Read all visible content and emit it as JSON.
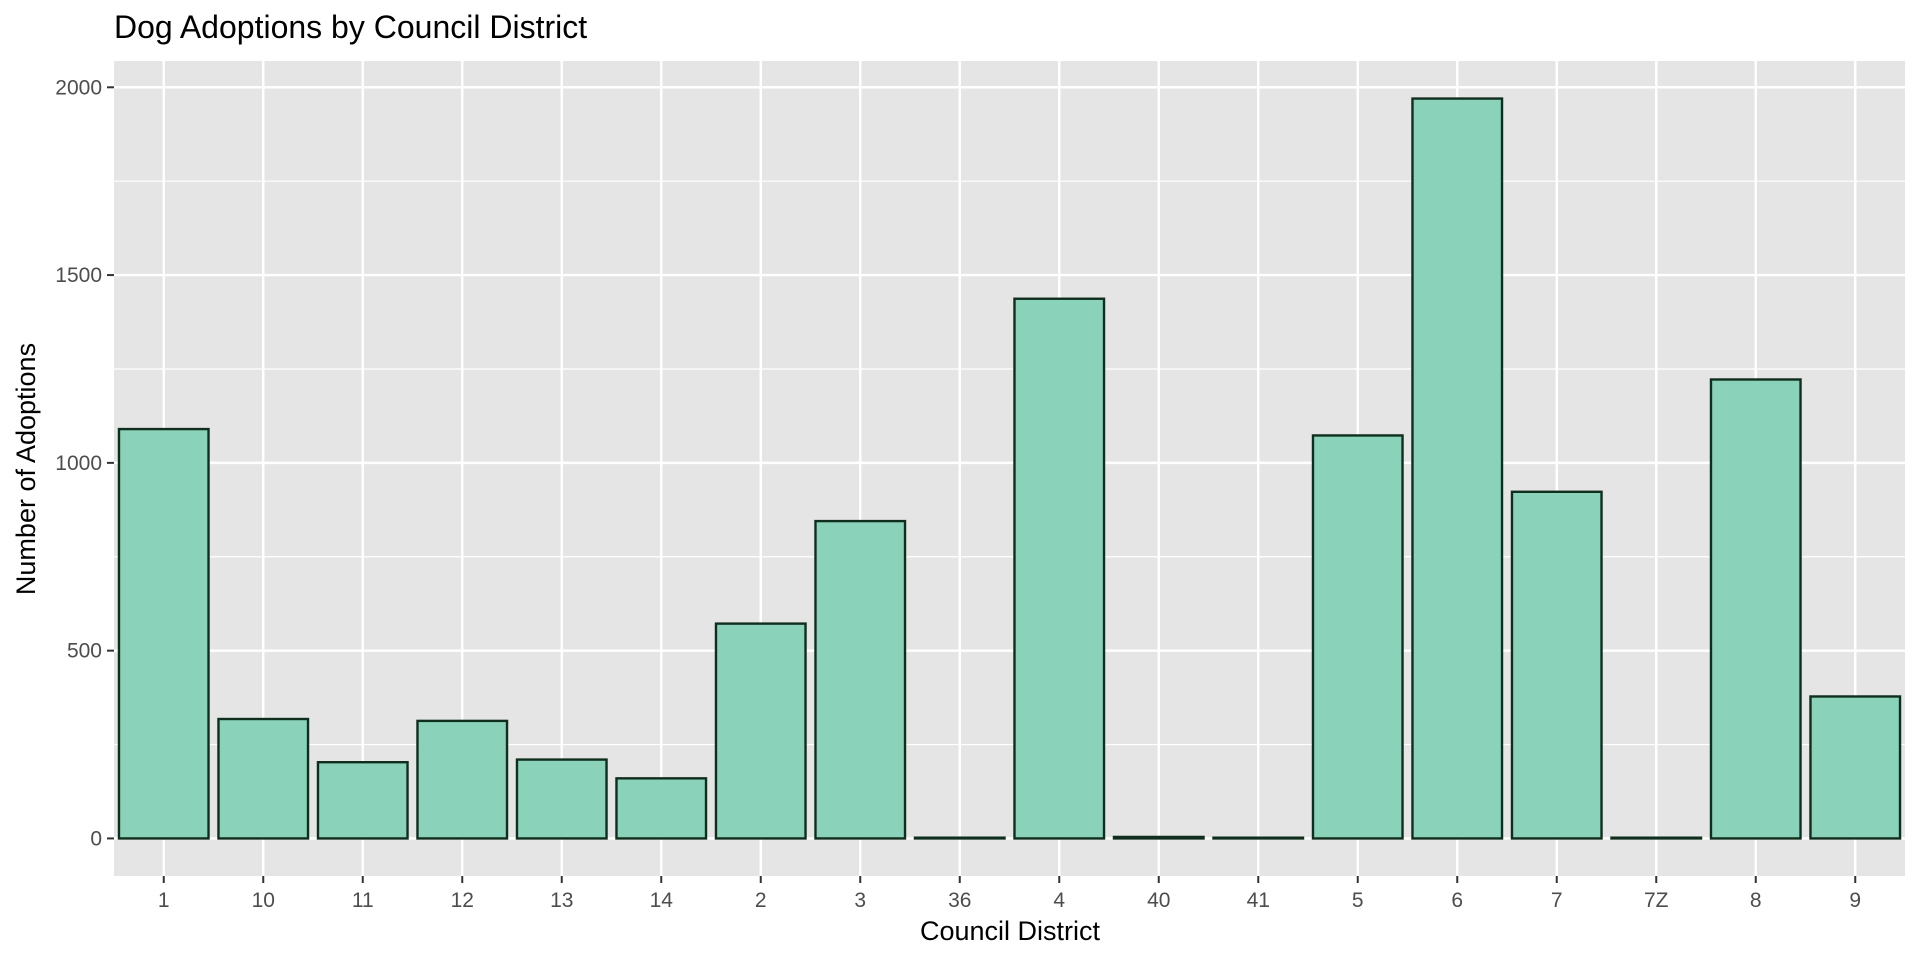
{
  "chart_data": {
    "type": "bar",
    "title": "Dog Adoptions by Council District",
    "xlabel": "Council District",
    "ylabel": "Number of Adoptions",
    "categories": [
      "1",
      "10",
      "11",
      "12",
      "13",
      "14",
      "2",
      "3",
      "36",
      "4",
      "40",
      "41",
      "5",
      "6",
      "7",
      "7Z",
      "8",
      "9"
    ],
    "values": [
      1090,
      318,
      203,
      313,
      210,
      160,
      572,
      845,
      2,
      1437,
      4,
      2,
      1073,
      1970,
      923,
      2,
      1222,
      378
    ],
    "yticks": [
      0,
      500,
      1000,
      1500,
      2000
    ],
    "ylim": [
      -100,
      2070
    ],
    "grid": true,
    "legend": "none",
    "colors": {
      "panel": "#e5e5e5",
      "gridline": "#ffffff",
      "bar_fill": "#8bd2ba",
      "bar_stroke": "#0f2e1d",
      "tick_text": "#4d4d4d",
      "tick_mark": "#333333"
    }
  }
}
